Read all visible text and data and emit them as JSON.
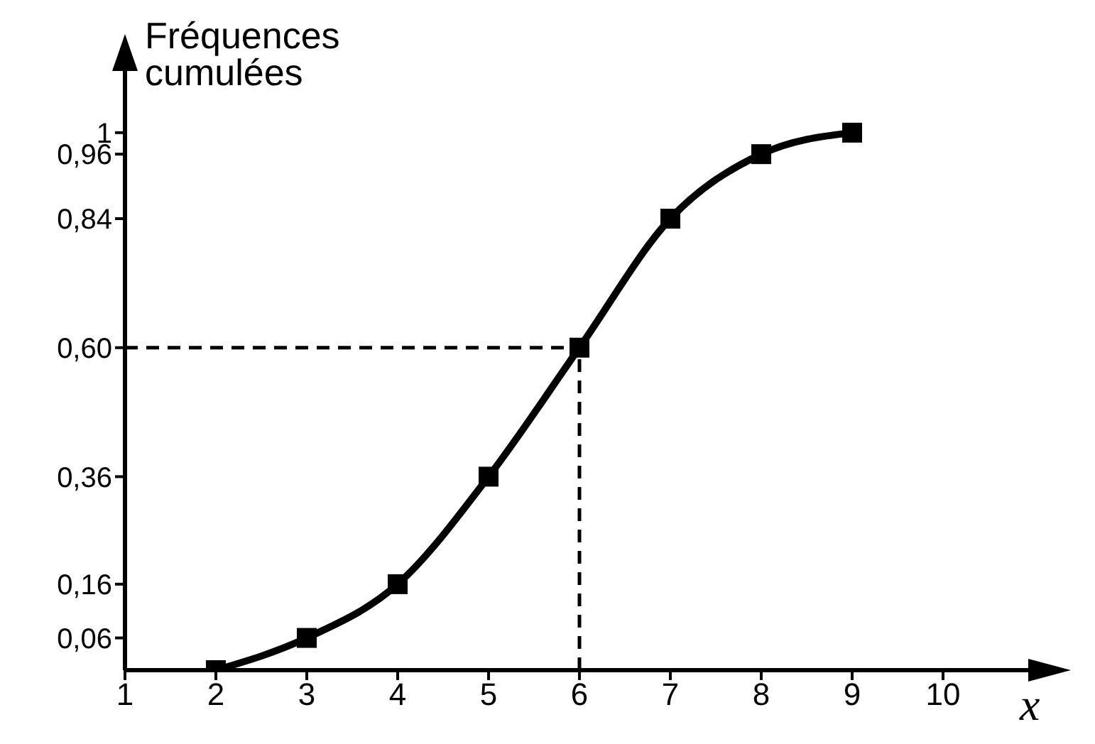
{
  "chart_data": {
    "type": "line",
    "ylabel": "Fréquences cumulées",
    "xlabel": "x",
    "x": [
      2,
      3,
      4,
      5,
      6,
      7,
      8,
      9
    ],
    "series": [
      {
        "color": "#000000",
        "values": [
          0,
          0.06,
          0.16,
          0.36,
          0.6,
          0.84,
          0.96,
          1
        ]
      }
    ],
    "xlim": [
      1,
      11
    ],
    "xticks": [
      1,
      2,
      3,
      4,
      5,
      6,
      7,
      8,
      9,
      10
    ],
    "ylim": [
      0,
      1.12
    ],
    "yticks": [
      {
        "value": 0.06,
        "label": "0,06"
      },
      {
        "value": 0.16,
        "label": "0,16"
      },
      {
        "value": 0.36,
        "label": "0,36"
      },
      {
        "value": 0.6,
        "label": "0,60"
      },
      {
        "value": 0.84,
        "label": "0,84"
      },
      {
        "value": 0.96,
        "label": "0,96"
      },
      {
        "value": 1,
        "label": "1"
      }
    ],
    "ref_lines": [
      {
        "axis": "y",
        "value": 0.6,
        "line_style": "dashed"
      },
      {
        "axis": "x",
        "value": 6,
        "line_style": "dashed"
      }
    ],
    "marker": "square",
    "line_style": "solid",
    "grid": false,
    "legend": false
  }
}
